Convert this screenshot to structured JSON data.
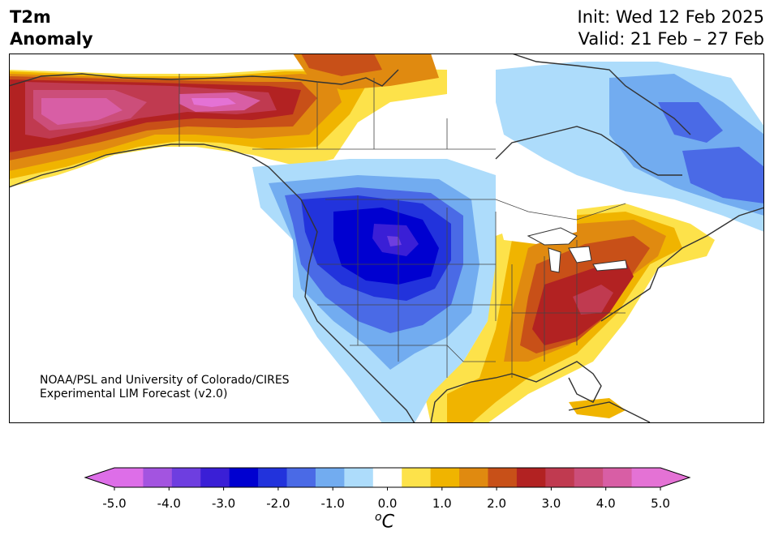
{
  "title": {
    "left_line1": "T2m",
    "left_line2": "Anomaly",
    "right_line1": "Init: Wed 12 Feb 2025",
    "right_line2": "Valid: 21 Feb – 27 Feb"
  },
  "credit": {
    "line1": "NOAA/PSL and University of Colorado/CIRES",
    "line2": "Experimental LIM Forecast (v2.0)"
  },
  "colorbar": {
    "ticks": [
      "-5.0",
      "-4.0",
      "-3.0",
      "-2.0",
      "-1.0",
      "0.0",
      "1.0",
      "2.0",
      "3.0",
      "4.0",
      "5.0"
    ],
    "units_sup": "o",
    "units_main": "C",
    "levels": [
      -5.0,
      -4.5,
      -4.0,
      -3.5,
      -3.0,
      -2.5,
      -2.0,
      -1.5,
      -1.0,
      -0.5,
      0.5,
      1.0,
      1.5,
      2.0,
      2.5,
      3.0,
      3.5,
      4.0,
      4.5,
      5.0
    ],
    "colors": [
      "#dd6ee8",
      "#a354e0",
      "#6e3ee0",
      "#3a1fd6",
      "#0000d0",
      "#2233dc",
      "#4a6ae6",
      "#72acf0",
      "#addcfb",
      "#ffffff",
      "#fde24a",
      "#f0b400",
      "#e08a10",
      "#c85018",
      "#b22222",
      "#c03a50",
      "#cc4e7a",
      "#d85ea5",
      "#e472d5"
    ],
    "under_color": "#dd6ee8",
    "over_color": "#e472d5"
  },
  "map": {
    "region": "North America",
    "variable": "2 m temperature anomaly",
    "anomaly_regions": [
      {
        "area": "Alaska",
        "level": "+4 to +5"
      },
      {
        "area": "Yukon / NW Canada",
        "level": "+1 to +3"
      },
      {
        "area": "Northern Rockies / Montana",
        "level": "-3 to -4"
      },
      {
        "area": "Great Basin / Southwest",
        "level": "-1 to -2.5"
      },
      {
        "area": "Southeast US",
        "level": "+2.5 to +3.5"
      },
      {
        "area": "Ohio Valley / Mid-Atlantic",
        "level": "+1 to +2.5"
      },
      {
        "area": "Eastern Canada / Labrador",
        "level": "-1 to -2.5"
      }
    ]
  }
}
